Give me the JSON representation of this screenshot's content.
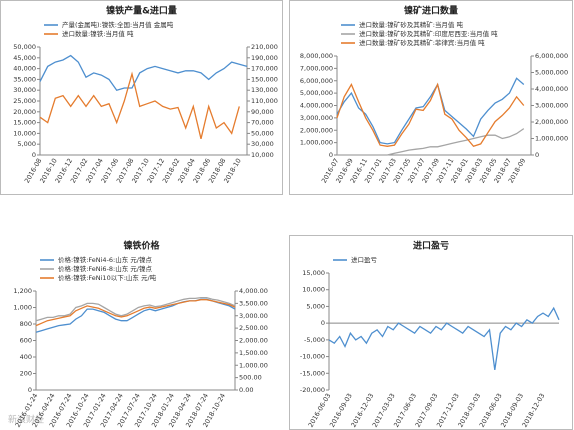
{
  "chart_data": [
    {
      "type": "line",
      "title": "镍铁产量&进口量",
      "categories": [
        "2016-08",
        null,
        "2016-10",
        null,
        "2016-12",
        null,
        "2017-02",
        null,
        "2017-04",
        null,
        "2017-06",
        null,
        "2017-08",
        null,
        "2017-10",
        null,
        "2017-12",
        null,
        "2018-02",
        null,
        "2018-04",
        null,
        "2018-06",
        null,
        "2018-08",
        null,
        "2018-10",
        null
      ],
      "series": [
        {
          "name": "产量(金属吨):镍铁:全国:当月值 金属吨",
          "color": "#4e8fcf",
          "values": [
            34000,
            41000,
            43000,
            44000,
            46000,
            43000,
            36000,
            38000,
            37000,
            35000,
            30000,
            31000,
            31000,
            38000,
            40000,
            41000,
            40000,
            39000,
            38000,
            39000,
            39000,
            38000,
            35000,
            38000,
            40000,
            43000,
            42000,
            41000
          ]
        },
        {
          "name": "进口数量:镍铁:当月值 吨",
          "color": "#e57c2e",
          "axis": "y2",
          "values": [
            80000,
            70000,
            115000,
            120000,
            100000,
            120000,
            100000,
            120000,
            100000,
            105000,
            70000,
            110000,
            160000,
            100000,
            105000,
            110000,
            100000,
            95000,
            98000,
            60000,
            100000,
            40000,
            100000,
            60000,
            70000,
            50000,
            100000,
            null
          ]
        }
      ],
      "ylim": [
        0,
        50000
      ],
      "yticks": [
        0,
        {
          "value": 5000,
          "label": "5,000"
        },
        {
          "value": 10000,
          "label": "10,000"
        },
        {
          "value": 15000,
          "label": "15,000"
        },
        {
          "value": 20000,
          "label": "20,000"
        },
        {
          "value": 25000,
          "label": "25,000"
        },
        {
          "value": 30000,
          "label": "30,000"
        },
        {
          "value": 35000,
          "label": "35,000"
        },
        {
          "value": 40000,
          "label": "40,000"
        },
        {
          "value": 45000,
          "label": "45,000"
        },
        {
          "value": 50000,
          "label": "50,000"
        }
      ],
      "y2lim": [
        10000,
        210000
      ],
      "y2ticks": [
        {
          "value": 10000,
          "label": "10,000"
        },
        {
          "value": 30000,
          "label": "30,000"
        },
        {
          "value": 50000,
          "label": "50,000"
        },
        {
          "value": 70000,
          "label": "70,000"
        },
        {
          "value": 90000,
          "label": "90,000"
        },
        {
          "value": 110000,
          "label": "110,000"
        },
        {
          "value": 130000,
          "label": "130,000"
        },
        {
          "value": 150000,
          "label": "150,000"
        },
        {
          "value": 170000,
          "label": "170,000"
        },
        {
          "value": 190000,
          "label": "190,000"
        },
        {
          "value": 210000,
          "label": "210,000"
        }
      ]
    },
    {
      "type": "line",
      "title": "镍矿进口数量",
      "categories": [
        "2016-07",
        null,
        "2016-09",
        null,
        "2016-11",
        null,
        "2017-01",
        null,
        "2017-03",
        null,
        "2017-05",
        null,
        "2017-07",
        null,
        "2017-09",
        null,
        "2017-11",
        null,
        "2018-01",
        null,
        "2018-03",
        null,
        "2018-05",
        null,
        "2018-07",
        null,
        "2018-09",
        null
      ],
      "series": [
        {
          "name": "进口数量:镍矿砂及其精矿:当月值 吨",
          "color": "#4e8fcf",
          "values": [
            3300000,
            4300000,
            5000000,
            3800000,
            3300000,
            2300000,
            1000000,
            900000,
            1000000,
            2000000,
            2900000,
            3800000,
            3900000,
            4700000,
            5700000,
            3600000,
            3100000,
            2600000,
            2100000,
            1500000,
            2900000,
            3600000,
            4200000,
            4500000,
            5000000,
            6200000,
            5700000,
            null
          ]
        },
        {
          "name": "进口数量:镍矿砂及其精矿:印度尼西亚:当月值 吨",
          "color": "#a5a5a5",
          "axis": "y2",
          "values": [
            0,
            0,
            0,
            0,
            0,
            0,
            0,
            0,
            100000,
            200000,
            300000,
            350000,
            400000,
            500000,
            500000,
            600000,
            700000,
            800000,
            900000,
            1000000,
            1100000,
            1200000,
            1200000,
            1000000,
            1100000,
            1300000,
            1600000,
            null
          ]
        },
        {
          "name": "进口数量:镍矿砂及其精矿:菲律宾:当月值 吨",
          "color": "#e57c2e",
          "values": [
            3000000,
            4700000,
            5700000,
            4300000,
            3000000,
            2000000,
            800000,
            700000,
            800000,
            1700000,
            2500000,
            3700000,
            3600000,
            4400000,
            5700000,
            3300000,
            2900000,
            2000000,
            1400000,
            700000,
            900000,
            1800000,
            2700000,
            3200000,
            3800000,
            4700000,
            4000000,
            null
          ]
        }
      ],
      "ylim": [
        0,
        8000000
      ],
      "yticks": [
        0,
        {
          "value": 1000000,
          "label": "1,000,000"
        },
        {
          "value": 2000000,
          "label": "2,000,000"
        },
        {
          "value": 3000000,
          "label": "3,000,000"
        },
        {
          "value": 4000000,
          "label": "4,000,000"
        },
        {
          "value": 5000000,
          "label": "5,000,000"
        },
        {
          "value": 6000000,
          "label": "6,000,000"
        },
        {
          "value": 7000000,
          "label": "7,000,000"
        },
        {
          "value": 8000000,
          "label": "8,000,000"
        }
      ],
      "y2lim": [
        0,
        6000000
      ],
      "y2ticks": [
        0,
        {
          "value": 1000000,
          "label": "1,000,000"
        },
        {
          "value": 2000000,
          "label": "2,000,000"
        },
        {
          "value": 3000000,
          "label": "3,000,000"
        },
        {
          "value": 4000000,
          "label": "4,000,000"
        },
        {
          "value": 5000000,
          "label": "5,000,000"
        },
        {
          "value": 6000000,
          "label": "6,000,000"
        }
      ]
    },
    {
      "type": "line",
      "title": "镍铁价格",
      "categories": [
        "2016-01-24",
        null,
        null,
        "2016-04-24",
        null,
        null,
        "2016-07-24",
        null,
        null,
        "2016-10-24",
        null,
        null,
        "2017-01-24",
        null,
        null,
        "2017-04-24",
        null,
        null,
        "2017-07-24",
        null,
        null,
        "2017-10-24",
        null,
        null,
        "2018-01-24",
        null,
        null,
        "2018-04-24",
        null,
        null,
        "2018-07-24",
        null,
        null,
        "2018-10-24",
        null,
        null
      ],
      "series": [
        {
          "name": "价格:镍铁:FeNi4-6:山东 元/镍点",
          "color": "#4e8fcf",
          "values": [
            700,
            720,
            740,
            760,
            780,
            790,
            800,
            860,
            900,
            980,
            980,
            960,
            940,
            900,
            860,
            840,
            840,
            880,
            920,
            960,
            980,
            960,
            980,
            1000,
            1020,
            1050,
            1070,
            1080,
            1080,
            1100,
            1100,
            1080,
            1060,
            1040,
            1020,
            980
          ]
        },
        {
          "name": "价格:镍铁:FeNi6-8:山东 元/镍点",
          "color": "#a5a5a5",
          "values": [
            840,
            860,
            880,
            880,
            900,
            900,
            920,
            1000,
            1020,
            1050,
            1050,
            1040,
            1000,
            960,
            920,
            900,
            920,
            960,
            1000,
            1020,
            1030,
            1010,
            1020,
            1040,
            1060,
            1080,
            1100,
            1110,
            1110,
            1120,
            1120,
            1100,
            1090,
            1070,
            1050,
            1020
          ]
        },
        {
          "name": "价格:镍铁:FeNi10以下:山东 元/吨",
          "color": "#e57c2e",
          "axis": "y2",
          "values": [
            2600,
            2700,
            2800,
            2850,
            2900,
            2950,
            3000,
            3200,
            3300,
            3400,
            3350,
            3300,
            3200,
            3100,
            3000,
            2950,
            3000,
            3100,
            3200,
            3300,
            3350,
            3300,
            3350,
            3400,
            3450,
            3500,
            3550,
            3600,
            3600,
            3650,
            3650,
            3600,
            3550,
            3500,
            3450,
            3350
          ]
        }
      ],
      "ylim": [
        0,
        1200
      ],
      "yticks": [
        0,
        200,
        400,
        600,
        800,
        {
          "value": 1000,
          "label": "1,000"
        },
        {
          "value": 1200,
          "label": "1,200"
        }
      ],
      "y2lim": [
        0,
        4000
      ],
      "y2ticks": [
        {
          "value": 0,
          "label": "0.00"
        },
        {
          "value": 500,
          "label": "500.00"
        },
        {
          "value": 1000,
          "label": "1,000.00"
        },
        {
          "value": 1500,
          "label": "1,500.00"
        },
        {
          "value": 2000,
          "label": "2,000.00"
        },
        {
          "value": 2500,
          "label": "2,500.00"
        },
        {
          "value": 3000,
          "label": "3,000.00"
        },
        {
          "value": 3500,
          "label": "3,500.00"
        },
        {
          "value": 4000,
          "label": "4,000.00"
        }
      ]
    },
    {
      "type": "line",
      "title": "进口盈亏",
      "categories": [
        "2016-06-03",
        null,
        null,
        null,
        "2016-09-03",
        null,
        null,
        null,
        "2016-12-03",
        null,
        null,
        null,
        "2017-03-03",
        null,
        null,
        null,
        "2017-06-03",
        null,
        null,
        null,
        "2017-09-03",
        null,
        null,
        null,
        "2017-12-03",
        null,
        null,
        null,
        "2018-03-03",
        null,
        null,
        null,
        "2018-06-03",
        null,
        null,
        null,
        "2018-09-03",
        null,
        null,
        null,
        "2018-12-03",
        null,
        null,
        null
      ],
      "series": [
        {
          "name": "进口盈亏",
          "color": "#4e8fcf",
          "values": [
            -5000,
            -6000,
            -4000,
            -7000,
            -3000,
            -5000,
            -4000,
            -6000,
            -3000,
            -2000,
            -4000,
            -1000,
            -2000,
            0,
            -1000,
            -2000,
            -3000,
            -1000,
            -2000,
            -3000,
            -1000,
            -2000,
            0,
            -1000,
            -2000,
            -3000,
            -1000,
            -2000,
            -3000,
            -4000,
            -2000,
            -14000,
            -3000,
            -1000,
            -2000,
            0,
            -1000,
            1000,
            0,
            2000,
            3000,
            2000,
            4500,
            1000
          ]
        }
      ],
      "ylim": [
        -20000,
        15000
      ],
      "yticks": [
        {
          "value": -20000,
          "label": "-20,000"
        },
        {
          "value": -15000,
          "label": "-15,000"
        },
        {
          "value": -10000,
          "label": "-10,000"
        },
        {
          "value": -5000,
          "label": "-5,000"
        },
        0,
        {
          "value": 5000,
          "label": "5,000"
        },
        {
          "value": 10000,
          "label": "10,000"
        },
        {
          "value": 15000,
          "label": "15,000"
        }
      ]
    }
  ],
  "watermark": "新浪财经"
}
